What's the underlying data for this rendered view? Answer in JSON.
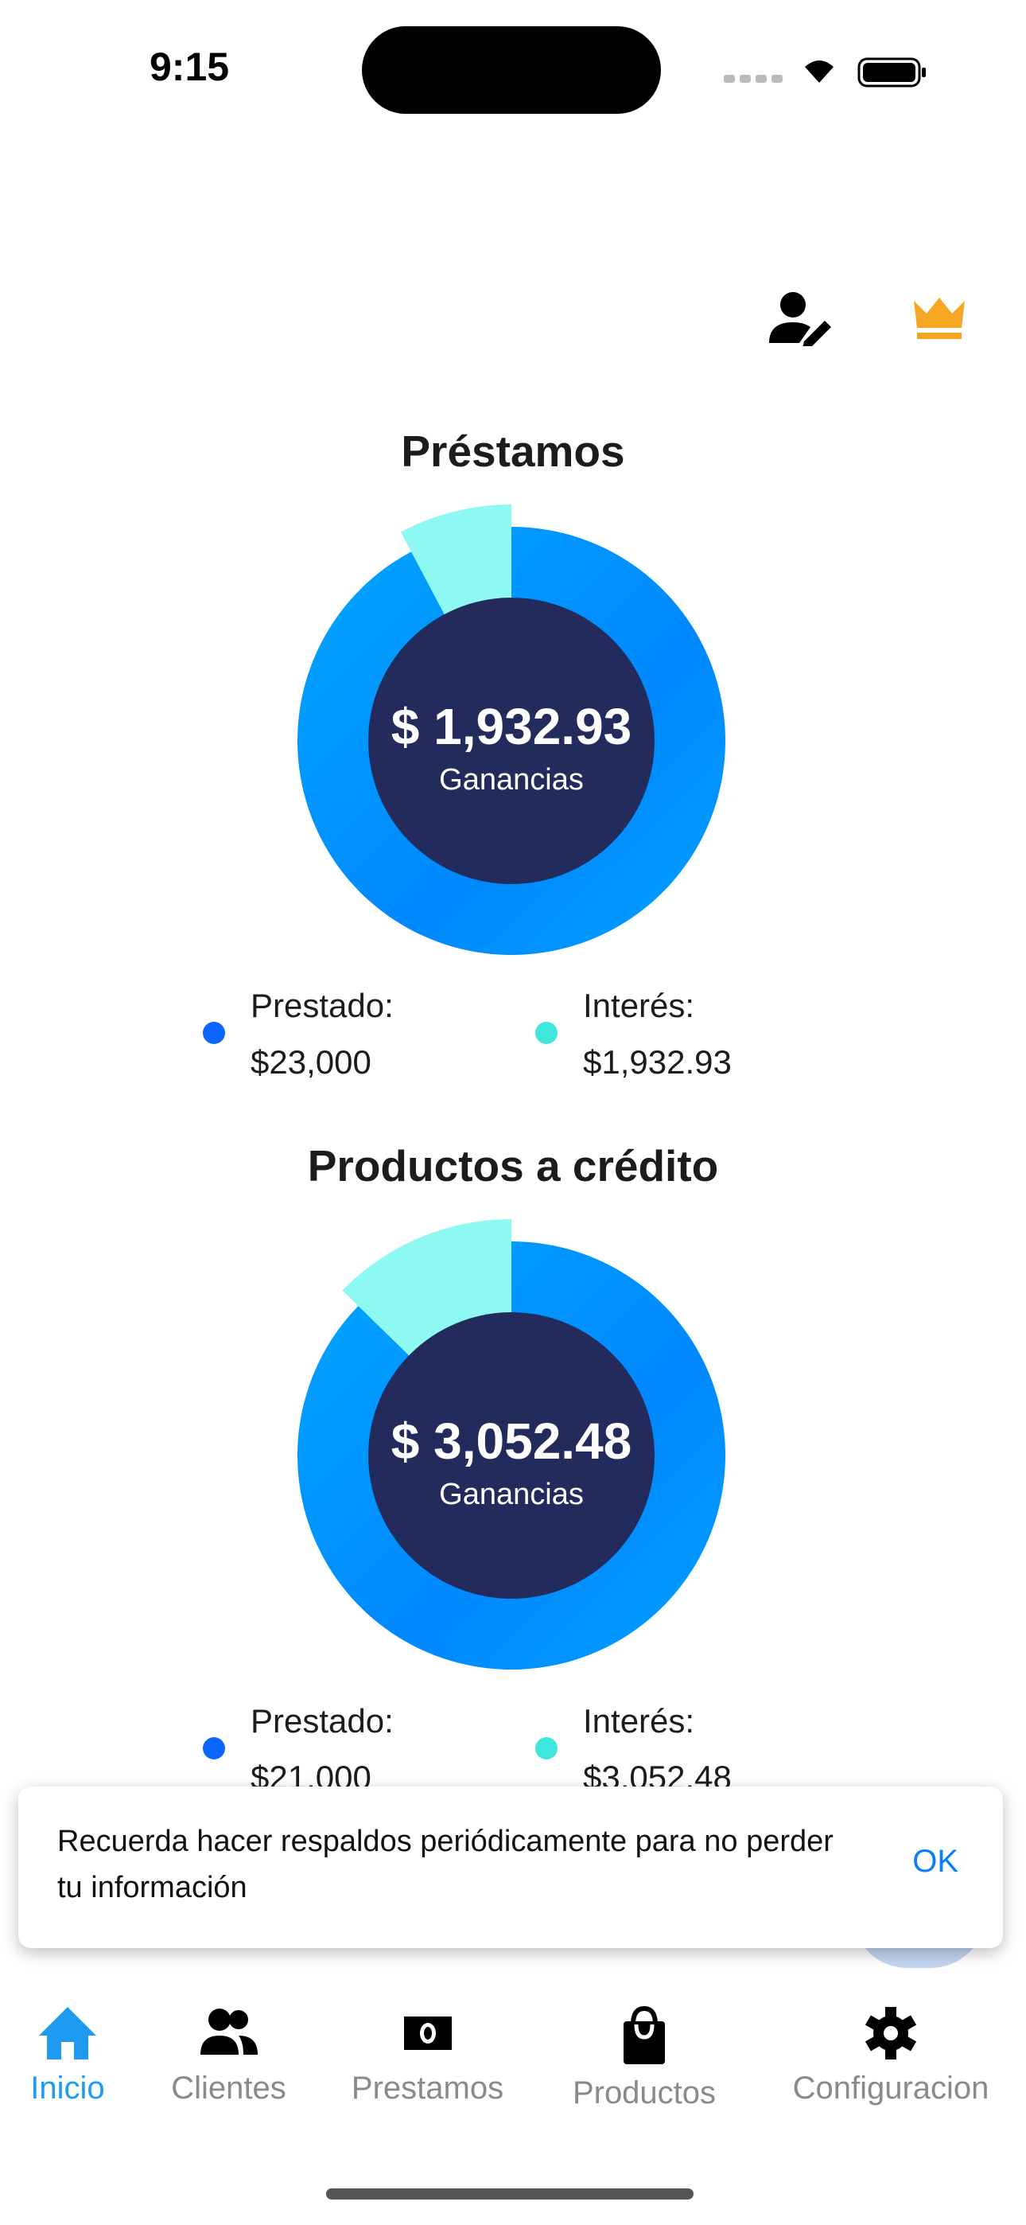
{
  "status_bar": {
    "time": "9:15"
  },
  "header": {
    "icons": [
      "user-edit-icon",
      "crown-icon"
    ],
    "crown_color": "#f5a623"
  },
  "sections": [
    {
      "title": "Préstamos",
      "center_amount": "$ 1,932.93",
      "center_label": "Ganancias",
      "legend": [
        {
          "label": "Prestado:",
          "value": "$23,000",
          "color": "#0a66ff"
        },
        {
          "label": "Interés:",
          "value": "$1,932.93",
          "color": "#3ee6dc"
        }
      ]
    },
    {
      "title": "Productos a crédito",
      "center_amount": "$ 3,052.48",
      "center_label": "Ganancias",
      "legend": [
        {
          "label": "Prestado:",
          "value": "$21,000",
          "color": "#0a66ff"
        },
        {
          "label": "Interés:",
          "value": "$3,052.48",
          "color": "#3ee6dc"
        }
      ]
    }
  ],
  "chart_data": [
    {
      "type": "pie",
      "values": [
        23000,
        1932.93
      ],
      "categories": [
        "Prestado",
        "Interés"
      ],
      "colors": [
        "#0091ff",
        "#8ef8f2"
      ]
    },
    {
      "type": "pie",
      "values": [
        21000,
        3052.48
      ],
      "categories": [
        "Prestado",
        "Interés"
      ],
      "colors": [
        "#0091ff",
        "#8ef8f2"
      ]
    }
  ],
  "snackbar": {
    "message": "Recuerda hacer respaldos periódicamente para no perder tu información",
    "action": "OK"
  },
  "nav": {
    "items": [
      {
        "label": "Inicio",
        "active": true
      },
      {
        "label": "Clientes"
      },
      {
        "label": "Prestamos"
      },
      {
        "label": "Productos"
      },
      {
        "label": "Configuracion"
      }
    ],
    "active_color": "#1e9bf0"
  }
}
